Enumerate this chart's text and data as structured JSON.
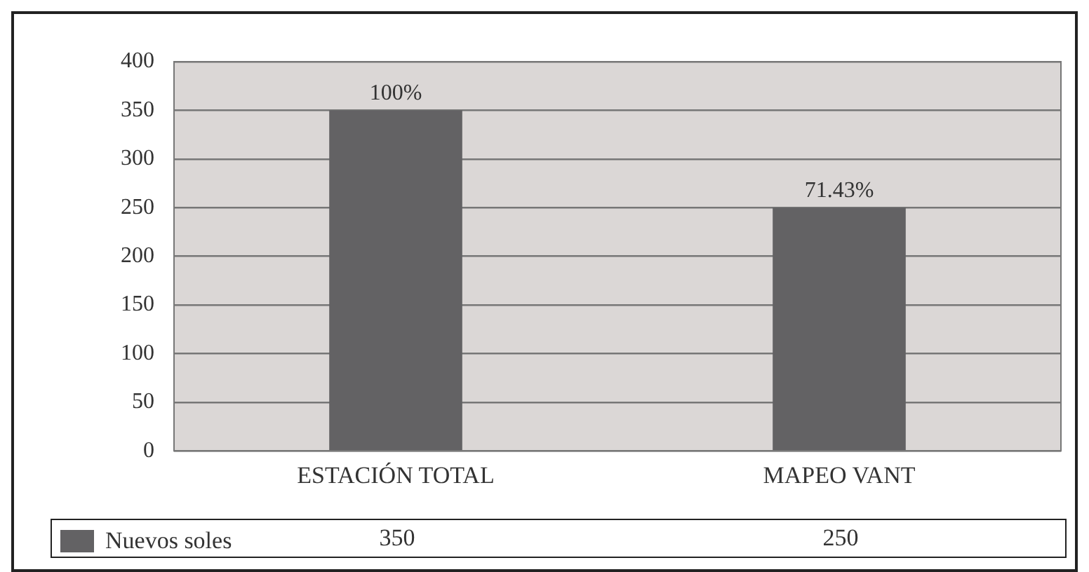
{
  "chart_data": {
    "type": "bar",
    "categories": [
      "ESTACIÓN TOTAL",
      "MAPEO VANT"
    ],
    "series": [
      {
        "name": "Nuevos soles",
        "color": "#636264",
        "values": [
          350,
          250
        ]
      }
    ],
    "annotations": [
      {
        "text": "100%",
        "x": "ESTACIÓN TOTAL",
        "y": 350
      },
      {
        "text": "71.43%",
        "x": "MAPEO VANT",
        "y": 250
      }
    ],
    "data_labels": true,
    "ylim": [
      0,
      400
    ],
    "yticks": [
      0,
      50,
      100,
      150,
      200,
      250,
      300,
      350,
      400
    ],
    "grid": "y",
    "legend": "bottom"
  }
}
